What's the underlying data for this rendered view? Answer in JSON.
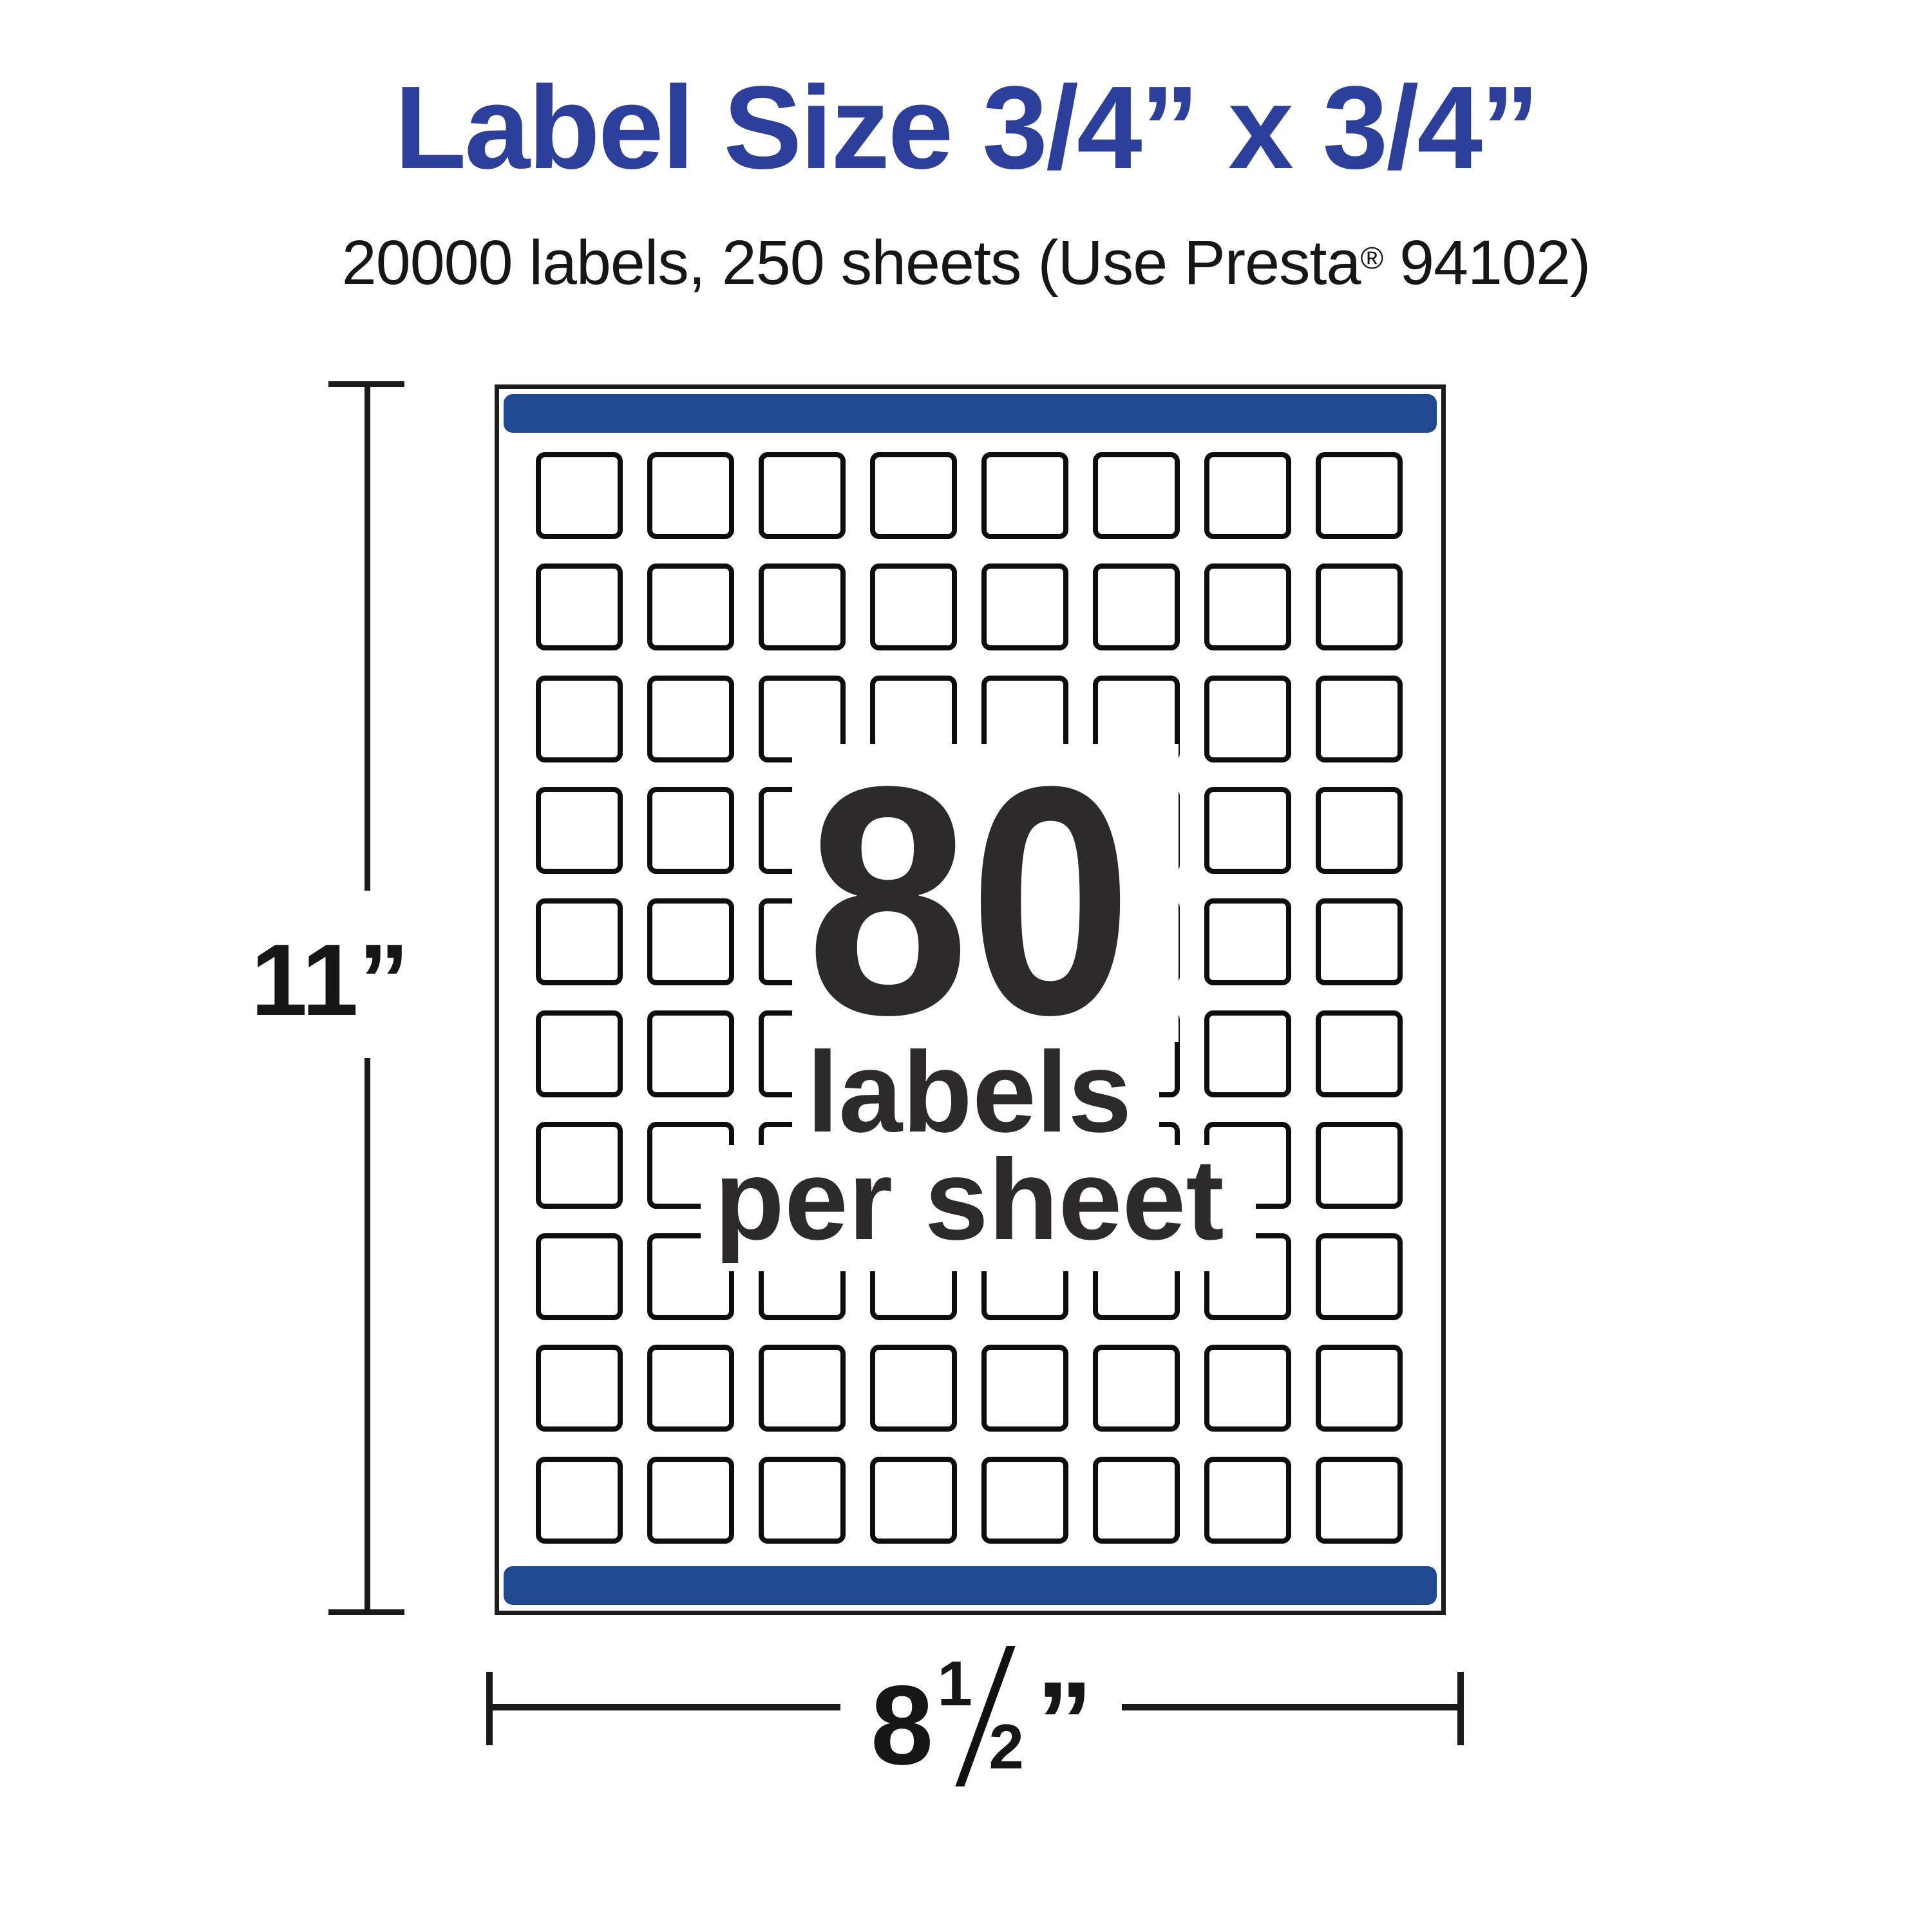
{
  "title": {
    "text": "Label Size 3/4” x 3/4”"
  },
  "subtitle": {
    "part1": "20000 labels, 250 sheets (Use Presta",
    "reg": "®",
    "part2": " 94102)"
  },
  "sheet": {
    "labels_per_sheet": 80,
    "grid": {
      "rows": 10,
      "columns": 8
    }
  },
  "overlay": {
    "line1": "80",
    "line2": "labels",
    "line3": "per sheet"
  },
  "dims": {
    "height": "11”",
    "width_whole": "8",
    "width_num": "1",
    "width_den": "2",
    "width_unit": "”"
  },
  "colors": {
    "title-blue": "#2c3f9a",
    "bar-blue": "#20498f",
    "ink": "#161616",
    "center-ink": "#2d2a2b"
  }
}
